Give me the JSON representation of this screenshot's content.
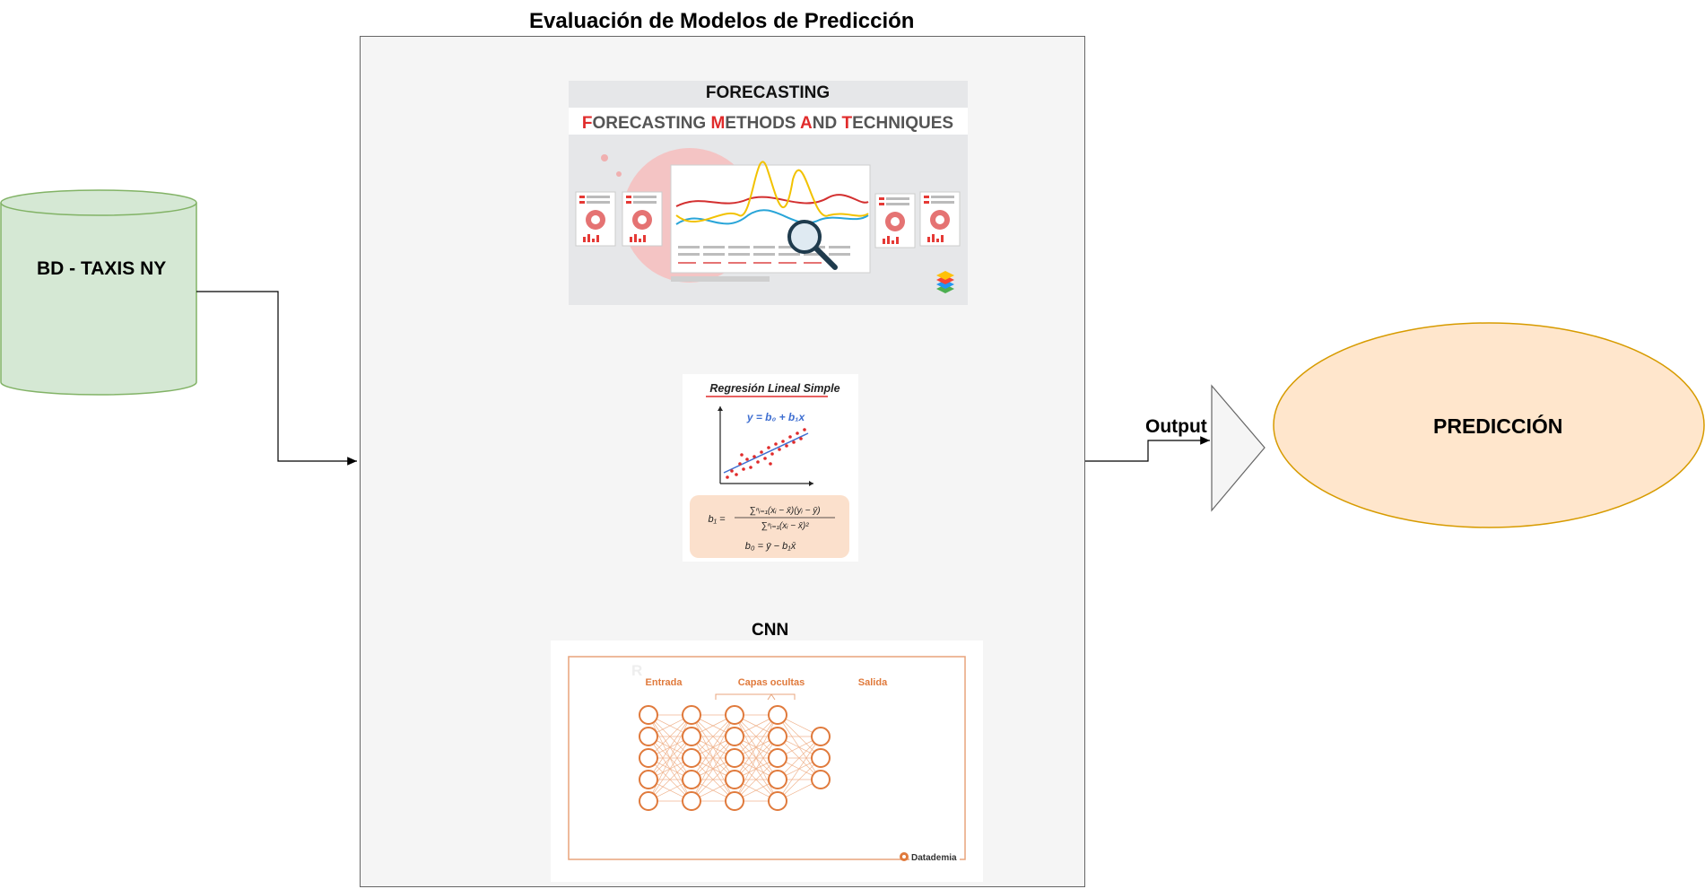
{
  "diagram": {
    "title": "Evaluación de Modelos de Predicción",
    "database": {
      "label": "BD - TAXIS NY"
    },
    "output_label": "Output",
    "prediction": {
      "label": "PREDICCIÓN"
    },
    "forecasting": {
      "heading": "FORECASTING",
      "banner": [
        {
          "initial": "F",
          "rest": "ORECASTING "
        },
        {
          "initial": "M",
          "rest": "ETHODS "
        },
        {
          "initial": "A",
          "rest": "ND "
        },
        {
          "initial": "T",
          "rest": "ECHNIQUES"
        }
      ]
    },
    "regression": {
      "title": "Regresión Lineal Simple",
      "equation": "y = b₀ + b₁x",
      "formula_b1_lhs": "b₁ =",
      "formula_b1_num": "∑ⁿᵢ₌₁(xᵢ − x̄)(yᵢ − ȳ)",
      "formula_b1_den": "∑ⁿᵢ₌₁(xᵢ − x̄)²",
      "formula_b0": "b₀ = ȳ − b₁x̄"
    },
    "cnn": {
      "heading": "CNN",
      "watermark": "R",
      "input_label": "Entrada",
      "hidden_label": "Capas ocultas",
      "output_label": "Salida",
      "brand": "Datademia"
    }
  },
  "colors": {
    "database_fill": "#d5e8d4",
    "database_stroke": "#82b366",
    "prediction_fill": "#ffe6cc",
    "prediction_stroke": "#d79b00",
    "container_fill": "#f5f5f5",
    "accent_red": "#e02b2b",
    "nn_orange": "#e07a3c",
    "formula_bg": "#fbe0cc"
  }
}
